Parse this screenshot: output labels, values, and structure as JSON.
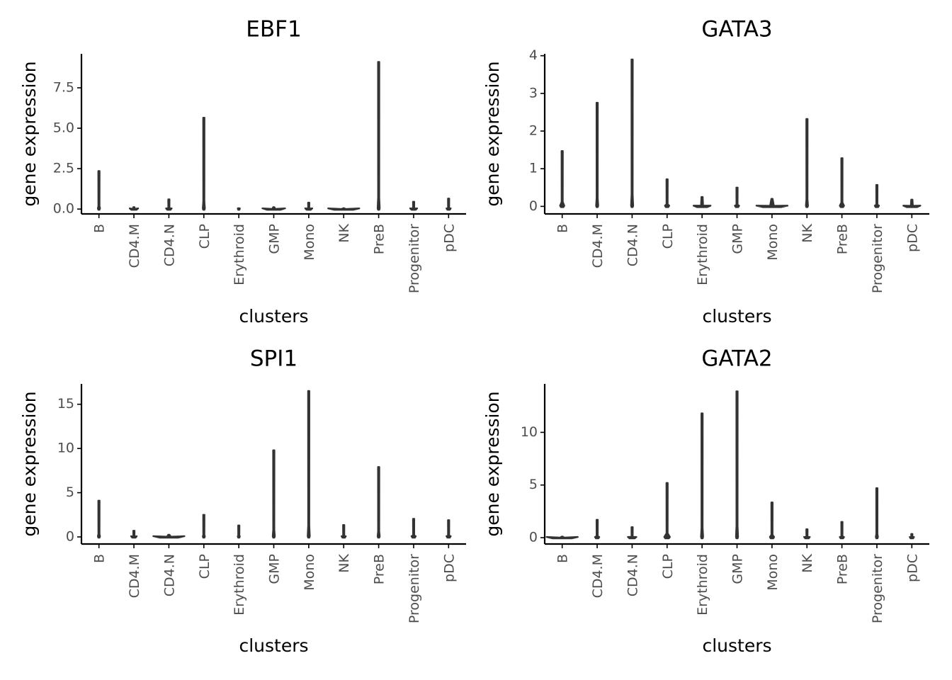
{
  "colors": {
    "violin": "#333333",
    "axis": "#000000",
    "tick_label": "#4d4d4d",
    "background": "#ffffff"
  },
  "chart_data": [
    {
      "type": "violin",
      "title": "EBF1",
      "xlabel": "clusters",
      "ylabel": "gene expression",
      "categories": [
        "B",
        "CD4.M",
        "CD4.N",
        "CLP",
        "Erythroid",
        "GMP",
        "Mono",
        "NK",
        "PreB",
        "Progenitor",
        "pDC"
      ],
      "max": [
        2.35,
        0.12,
        0.6,
        5.65,
        0.05,
        0.12,
        0.4,
        0.05,
        9.1,
        0.45,
        0.65
      ],
      "ylim": [
        -0.3,
        9.6
      ],
      "yticks": [
        0.0,
        2.5,
        5.0,
        7.5
      ],
      "ytick_labels": [
        "0.0",
        "2.5",
        "5.0",
        "7.5"
      ],
      "grid": false
    },
    {
      "type": "violin",
      "title": "GATA3",
      "xlabel": "clusters",
      "ylabel": "gene expression",
      "categories": [
        "B",
        "CD4.M",
        "CD4.N",
        "CLP",
        "Erythroid",
        "GMP",
        "Mono",
        "NK",
        "PreB",
        "Progenitor",
        "pDC"
      ],
      "max": [
        1.47,
        2.75,
        3.9,
        0.72,
        0.25,
        0.5,
        0.2,
        2.32,
        1.28,
        0.57,
        0.18
      ],
      "ylim": [
        -0.2,
        4.05
      ],
      "yticks": [
        0,
        1,
        2,
        3,
        4
      ],
      "ytick_labels": [
        "0",
        "1",
        "2",
        "3",
        "4"
      ],
      "grid": false
    },
    {
      "type": "violin",
      "title": "SPI1",
      "xlabel": "clusters",
      "ylabel": "gene expression",
      "categories": [
        "B",
        "CD4.M",
        "CD4.N",
        "CLP",
        "Erythroid",
        "GMP",
        "Mono",
        "NK",
        "PreB",
        "Progenitor",
        "pDC"
      ],
      "max": [
        4.1,
        0.7,
        0.25,
        2.5,
        1.3,
        9.8,
        16.5,
        1.35,
        7.9,
        2.05,
        1.9
      ],
      "ylim": [
        -0.8,
        17.3
      ],
      "yticks": [
        0,
        5,
        10,
        15
      ],
      "ytick_labels": [
        "0",
        "5",
        "10",
        "15"
      ],
      "grid": false
    },
    {
      "type": "violin",
      "title": "GATA2",
      "xlabel": "clusters",
      "ylabel": "gene expression",
      "categories": [
        "B",
        "CD4.M",
        "CD4.N",
        "CLP",
        "Erythroid",
        "GMP",
        "Mono",
        "NK",
        "PreB",
        "Progenitor",
        "pDC"
      ],
      "max": [
        0.1,
        1.7,
        1.0,
        5.2,
        11.8,
        13.9,
        3.35,
        0.8,
        1.5,
        4.7,
        0.35
      ],
      "ylim": [
        -0.6,
        14.6
      ],
      "yticks": [
        0,
        5,
        10
      ],
      "ytick_labels": [
        "0",
        "5",
        "10"
      ],
      "grid": false
    }
  ]
}
